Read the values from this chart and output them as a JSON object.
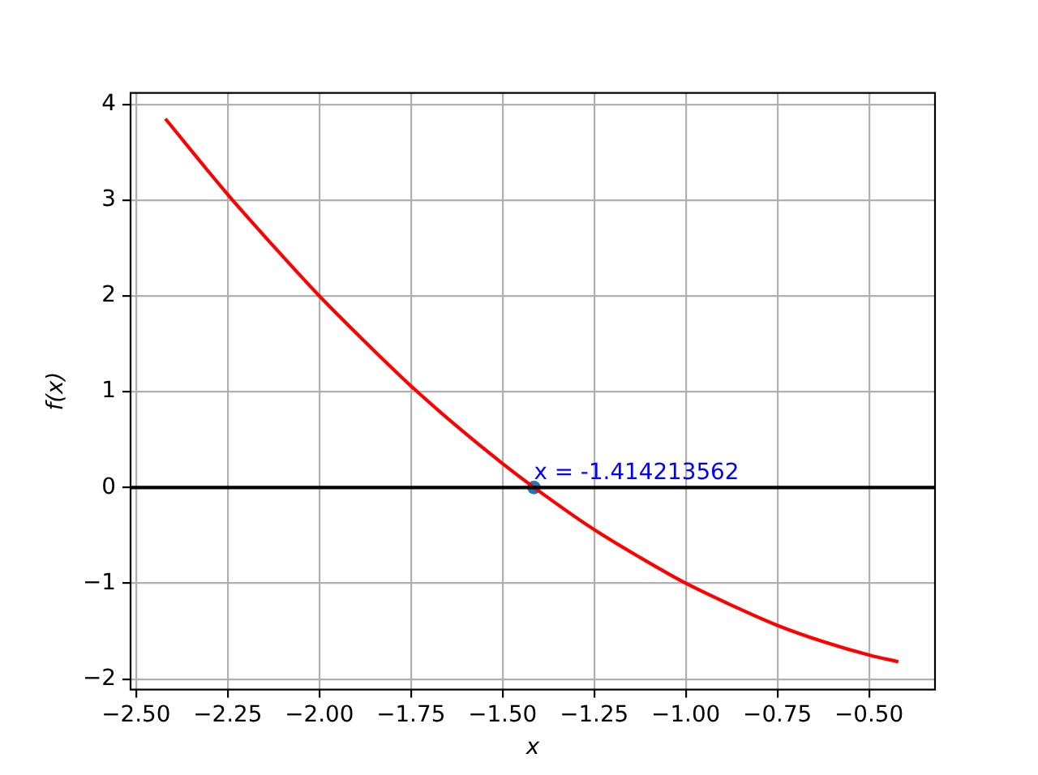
{
  "chart_data": {
    "type": "line",
    "xlabel": "x",
    "ylabel": "f(x)",
    "xlim": [
      -2.515,
      -0.32
    ],
    "ylim": [
      -2.11,
      4.12
    ],
    "xticks": [
      {
        "value": -2.5,
        "label": "−2.50"
      },
      {
        "value": -2.25,
        "label": "−2.25"
      },
      {
        "value": -2,
        "label": "−2.00"
      },
      {
        "value": -1.75,
        "label": "−1.75"
      },
      {
        "value": -1.5,
        "label": "−1.50"
      },
      {
        "value": -1.25,
        "label": "−1.25"
      },
      {
        "value": -1,
        "label": "−1.00"
      },
      {
        "value": -0.75,
        "label": "−0.75"
      },
      {
        "value": -0.5,
        "label": "−0.50"
      }
    ],
    "yticks": [
      {
        "value": -2,
        "label": "−2"
      },
      {
        "value": -1,
        "label": "−1"
      },
      0,
      1,
      2,
      3,
      4
    ],
    "grid": true,
    "series": [
      {
        "color": "#ff0000",
        "x": [
          -2.42,
          -2.25,
          -2.125,
          -2.0,
          -1.875,
          -1.75,
          -1.625,
          -1.5,
          -1.414,
          -1.25,
          -1.125,
          -1.0,
          -0.875,
          -0.75,
          -0.625,
          -0.5,
          -0.42
        ],
        "values": [
          3.85,
          3.06,
          2.52,
          2.0,
          1.52,
          1.06,
          0.64,
          0.25,
          0.0,
          -0.44,
          -0.73,
          -1.0,
          -1.23,
          -1.44,
          -1.61,
          -1.75,
          -1.82
        ]
      },
      {
        "type": "scatter",
        "color": "#1f77b4",
        "marker": "circle",
        "x": [
          -1.414213562
        ],
        "values": [
          0
        ]
      }
    ],
    "ref_lines": [
      {
        "axis": "y",
        "value": 0,
        "color": "#000000"
      }
    ],
    "annotations": [
      {
        "text": "x = -1.414213562",
        "x": -1.414213562,
        "y": 0
      }
    ]
  }
}
